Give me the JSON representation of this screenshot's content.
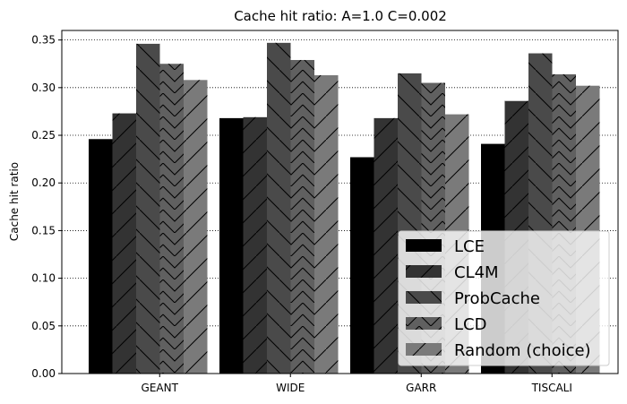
{
  "chart_data": {
    "type": "bar",
    "title": "Cache hit ratio: A=1.0 C=0.002",
    "xlabel": "",
    "ylabel": "Cache hit ratio",
    "ylim": [
      0,
      0.36
    ],
    "yticks": [
      "0.00",
      "0.05",
      "0.10",
      "0.15",
      "0.20",
      "0.25",
      "0.30",
      "0.35"
    ],
    "grid": "horizontal dotted",
    "legend_position": "lower-right",
    "categories": [
      "GEANT",
      "WIDE",
      "GARR",
      "TISCALI"
    ],
    "series": [
      {
        "name": "LCE",
        "color": "#000000",
        "hatch": "none",
        "values": [
          0.246,
          0.268,
          0.227,
          0.241
        ]
      },
      {
        "name": "CL4M",
        "color": "#333333",
        "hatch": "forward-diagonal",
        "values": [
          0.273,
          0.269,
          0.268,
          0.286
        ]
      },
      {
        "name": "ProbCache",
        "color": "#4a4a4a",
        "hatch": "back-diagonal",
        "values": [
          0.346,
          0.347,
          0.315,
          0.336
        ]
      },
      {
        "name": "LCD",
        "color": "#606060",
        "hatch": "chevron",
        "values": [
          0.325,
          0.329,
          0.305,
          0.314
        ]
      },
      {
        "name": "Random (choice)",
        "color": "#7a7a7a",
        "hatch": "forward-diagonal",
        "values": [
          0.308,
          0.313,
          0.272,
          0.302
        ]
      }
    ]
  }
}
